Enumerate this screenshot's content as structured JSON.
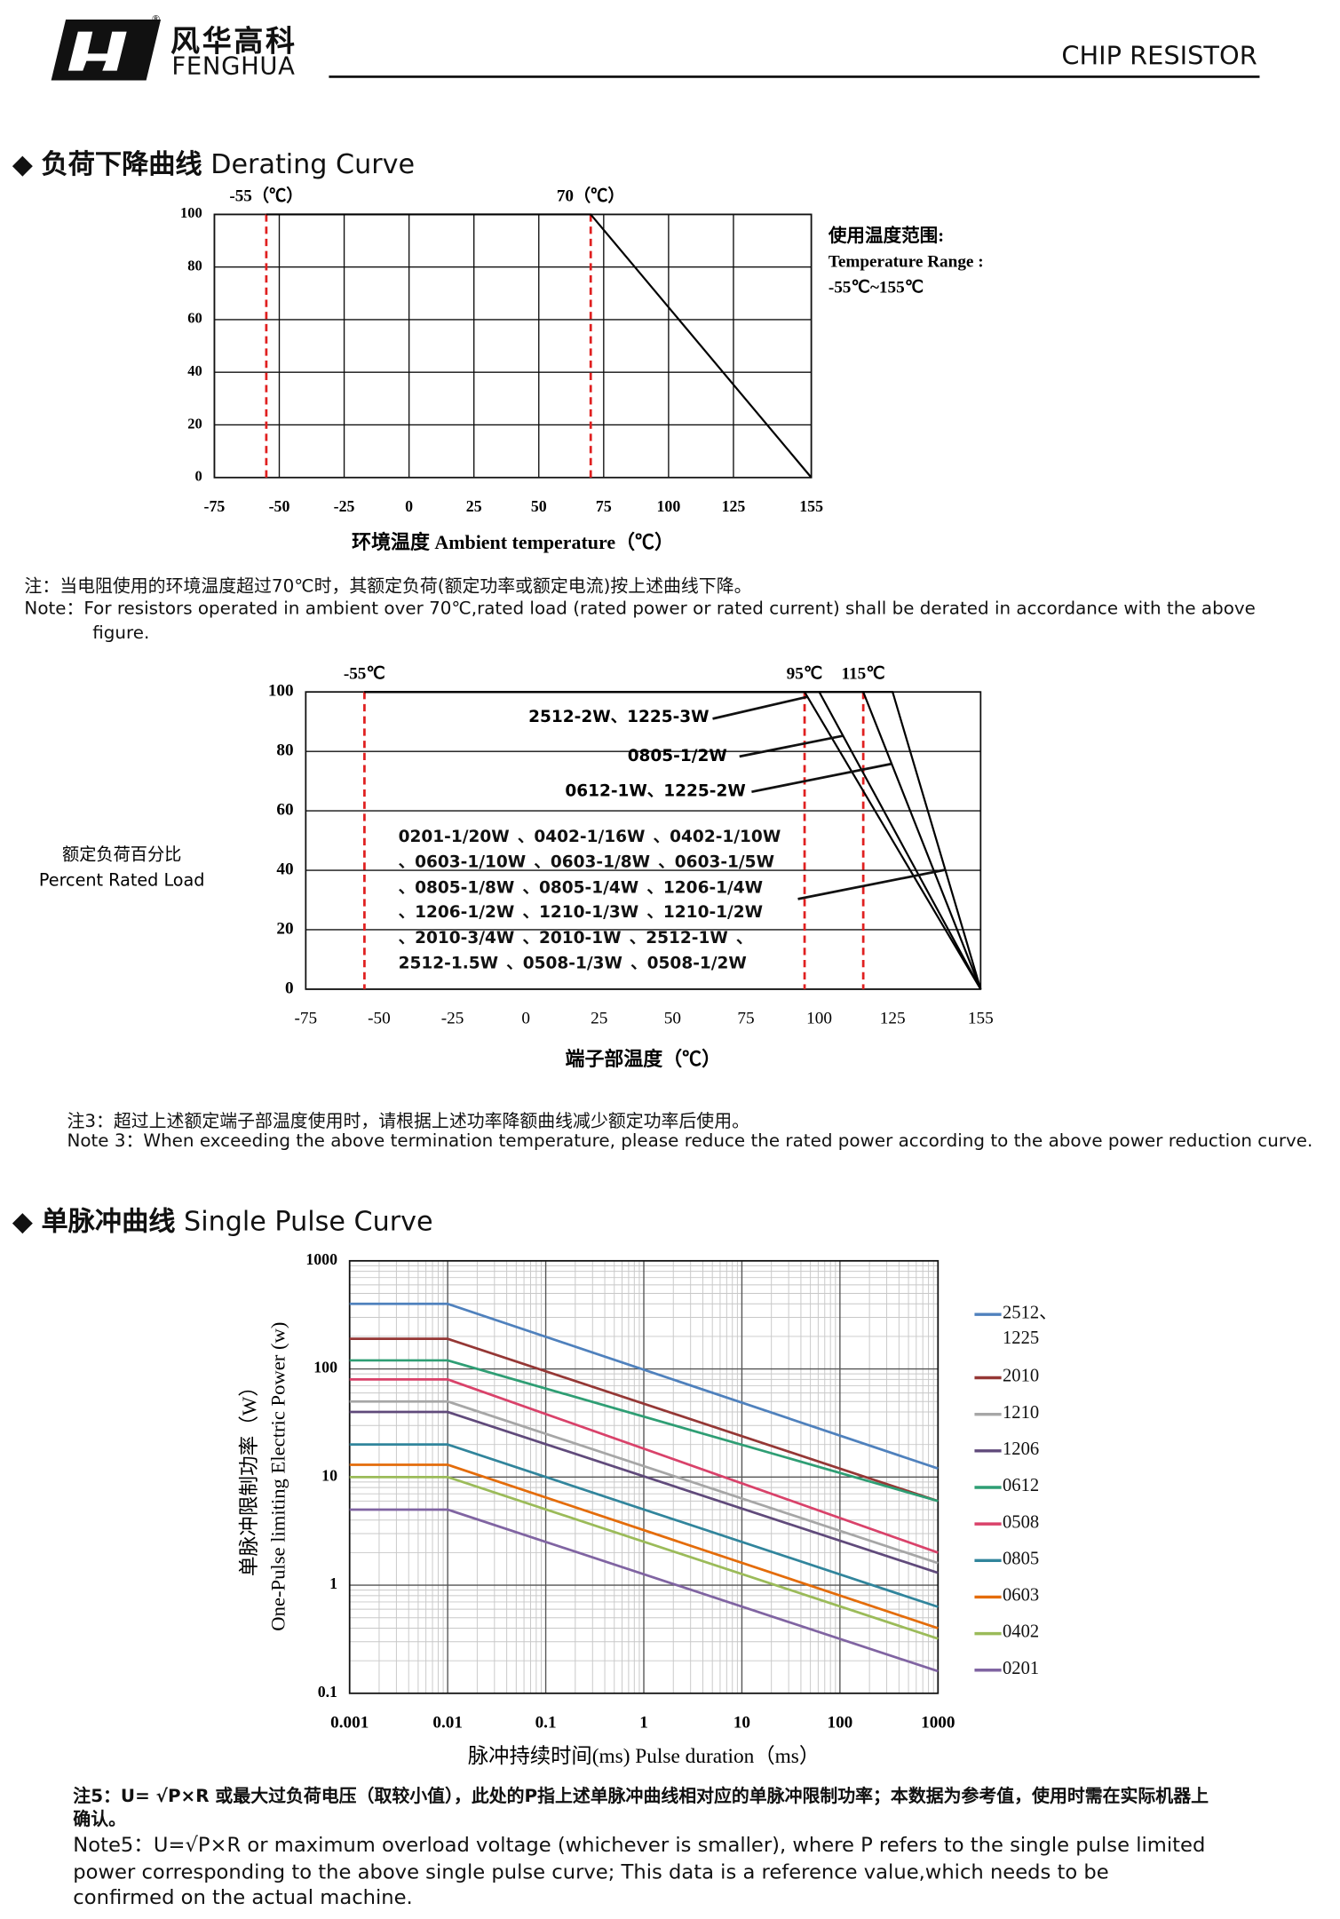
{
  "header": {
    "brand_cn": "风华高科",
    "brand_en": "FENGHUA",
    "doc_type": "CHIP RESISTOR"
  },
  "sections": [
    {
      "title_cn": "负荷下降曲线",
      "title_en": "Derating Curve"
    },
    {
      "title_cn": "单脉冲曲线",
      "title_en": "Single Pulse Curve"
    }
  ],
  "chart_data": [
    {
      "type": "line",
      "xlim": [
        -75,
        155
      ],
      "ylim": [
        0,
        100
      ],
      "xticks": [
        -75,
        -50,
        -25,
        0,
        25,
        50,
        75,
        100,
        125,
        155
      ],
      "yticks": [
        0,
        20,
        40,
        60,
        80,
        100
      ],
      "xlabel": "环境温度 Ambient temperature（℃）",
      "grid": "both",
      "series": [
        {
          "x": [
            -55,
            70,
            155
          ],
          "values": [
            100,
            100,
            0
          ],
          "color": "#000000"
        }
      ],
      "markers": [
        {
          "x": -55,
          "label": "-55（℃）"
        },
        {
          "x": 70,
          "label": "70（℃）"
        }
      ],
      "marker_color": "#e02020",
      "annotations": [
        "使用温度范围:",
        "Temperature Range :",
        "-55℃~155℃"
      ]
    },
    {
      "type": "line",
      "xlim": [
        -75,
        155
      ],
      "ylim": [
        0,
        100
      ],
      "xticks": [
        -75,
        -50,
        -25,
        0,
        25,
        50,
        75,
        100,
        125,
        155
      ],
      "yticks": [
        0,
        20,
        40,
        60,
        80,
        100
      ],
      "xlabel": "端子部温度（℃）",
      "ylabel": [
        "额定负荷百分比",
        "Percent Rated Load"
      ],
      "grid": "y",
      "series": [
        {
          "name": "2512-2W、1225-3W",
          "x": [
            -55,
            95,
            155
          ],
          "values": [
            100,
            100,
            0
          ],
          "color": "#000000"
        },
        {
          "name": "0805-1/2W",
          "x": [
            -55,
            100,
            155
          ],
          "values": [
            100,
            100,
            0
          ],
          "color": "#000000"
        },
        {
          "name": "0612-1W、1225-2W",
          "x": [
            -55,
            115,
            155
          ],
          "values": [
            100,
            100,
            0
          ],
          "color": "#000000"
        },
        {
          "name": "0201-1/20W 、0402-1/16W 、0402-1/10W 、0603-1/10W 、0603-1/8W 、0603-1/5W 、0805-1/8W 、0805-1/4W 、1206-1/4W 、1206-1/2W 、1210-1/3W 、1210-1/2W 、2010-3/4W 、2010-1W 、2512-1W 、2512-1.5W 、0508-1/3W 、0508-1/2W",
          "x": [
            -55,
            125,
            155
          ],
          "values": [
            100,
            100,
            0
          ],
          "color": "#000000"
        }
      ],
      "markers": [
        {
          "x": -55,
          "label": "-55℃"
        },
        {
          "x": 95,
          "label": "95℃"
        },
        {
          "x": 115,
          "label": "115℃"
        }
      ],
      "marker_color": "#e02020"
    },
    {
      "type": "line",
      "xscale": "log",
      "yscale": "log",
      "xlim": [
        0.001,
        1000
      ],
      "ylim": [
        0.1,
        1000
      ],
      "xticks": [
        0.001,
        0.01,
        0.1,
        1,
        10,
        100,
        1000
      ],
      "yticks": [
        0.1,
        1,
        10,
        100,
        1000
      ],
      "grid": "both",
      "minor_grid": true,
      "legend": "right",
      "xlabel": "脉冲持续时间(ms) Pulse duration（ms）",
      "ylabel": [
        "单脉冲限制功率（W）",
        "One-Pulse limiting Electric Power (w)"
      ],
      "series": [
        {
          "name": "2512、1225",
          "x": [
            0.001,
            0.01,
            1000
          ],
          "values": [
            400,
            400,
            12
          ],
          "color": "#4f81bd"
        },
        {
          "name": "2010",
          "x": [
            0.001,
            0.01,
            1000
          ],
          "values": [
            190,
            190,
            6
          ],
          "color": "#953735"
        },
        {
          "name": "1210",
          "x": [
            0.001,
            0.01,
            1000
          ],
          "values": [
            50,
            50,
            1.6
          ],
          "color": "#a6a6a6"
        },
        {
          "name": "1206",
          "x": [
            0.001,
            0.01,
            1000
          ],
          "values": [
            40,
            40,
            1.3
          ],
          "color": "#604a7b"
        },
        {
          "name": "0612",
          "x": [
            0.001,
            0.01,
            1000
          ],
          "values": [
            120,
            120,
            6
          ],
          "color": "#2e9e74"
        },
        {
          "name": "0508",
          "x": [
            0.001,
            0.01,
            1000
          ],
          "values": [
            80,
            80,
            2
          ],
          "color": "#d9426a"
        },
        {
          "name": "0805",
          "x": [
            0.001,
            0.01,
            1000
          ],
          "values": [
            20,
            20,
            0.63
          ],
          "color": "#31859c"
        },
        {
          "name": "0603",
          "x": [
            0.001,
            0.01,
            1000
          ],
          "values": [
            13,
            13,
            0.4
          ],
          "color": "#e46c0a"
        },
        {
          "name": "0402",
          "x": [
            0.001,
            0.01,
            1000
          ],
          "values": [
            10,
            10,
            0.32
          ],
          "color": "#9bbb59"
        },
        {
          "name": "0201",
          "x": [
            0.001,
            0.01,
            1000
          ],
          "values": [
            5,
            5,
            0.16
          ],
          "color": "#8064a2"
        }
      ]
    }
  ],
  "notes": [
    {
      "cn": "注：当电阻使用的环境温度超过70℃时，其额定负荷(额定功率或额定电流)按上述曲线下降。",
      "en": "Note：For resistors operated in ambient over 70℃,rated load (rated power or rated current) shall be derated in accordance with the above figure."
    },
    {
      "cn": "注3：超过上述额定端子部温度使用时，请根据上述功率降额曲线减少额定功率后使用。",
      "en": "Note 3：When exceeding the above termination temperature, please reduce the rated power according to the above power reduction curve."
    },
    {
      "cn": "注5：U= √P×R 或最大过负荷电压（取较小值），此处的P指上述单脉冲曲线相对应的单脉冲限制功率；本数据为参考值，使用时需在实际机器上确认。",
      "en": "Note5：U=√P×R or maximum overload voltage (whichever is smaller), where P refers to the single pulse limited power corresponding to the above single pulse curve; This data is a reference value,which needs to be confirmed on the actual machine."
    }
  ]
}
